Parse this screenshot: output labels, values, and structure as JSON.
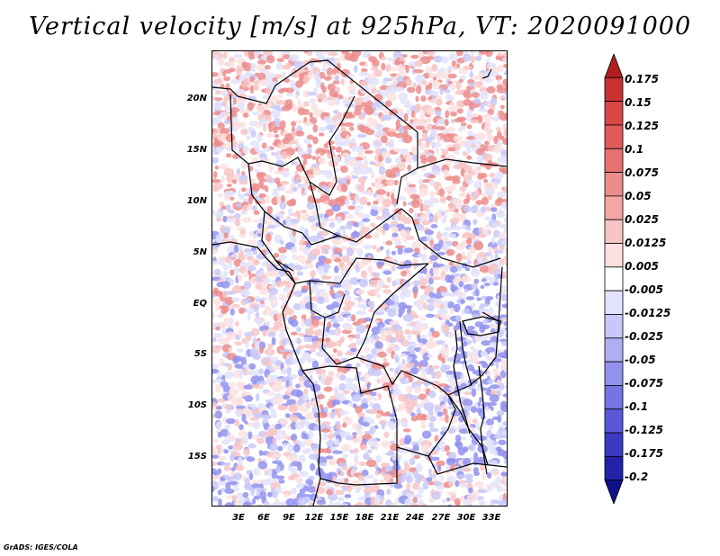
{
  "title": "Vertical velocity [m/s] at 925hPa, VT: 2020091000",
  "credit": "GrADS: IGES/COLA",
  "map": {
    "field": "vertical velocity",
    "level": "925hPa",
    "valid_time": "2020091000",
    "lat_labels": [
      "20N",
      "15N",
      "10N",
      "5N",
      "EQ",
      "5S",
      "10S",
      "15S"
    ],
    "lon_labels": [
      "3E",
      "6E",
      "9E",
      "12E",
      "15E",
      "18E",
      "21E",
      "24E",
      "27E",
      "30E",
      "33E"
    ]
  },
  "colorbar": {
    "labels": [
      "0.175",
      "0.15",
      "0.125",
      "0.1",
      "0.075",
      "0.05",
      "0.025",
      "0.0125",
      "0.005",
      "-0.005",
      "-0.0125",
      "-0.025",
      "-0.05",
      "-0.075",
      "-0.1",
      "-0.125",
      "-0.175",
      "-0.2"
    ],
    "colors": [
      "#b21e1e",
      "#c83232",
      "#d84646",
      "#e25a5a",
      "#e67272",
      "#ec8c8c",
      "#f2a6a6",
      "#f7c4c4",
      "#fce0e0",
      "#ffffff",
      "#e2e2fc",
      "#c8c8f8",
      "#aeaef4",
      "#9292ee",
      "#7474e4",
      "#5858d8",
      "#3a3ac4",
      "#2323aa",
      "#10108a"
    ]
  }
}
